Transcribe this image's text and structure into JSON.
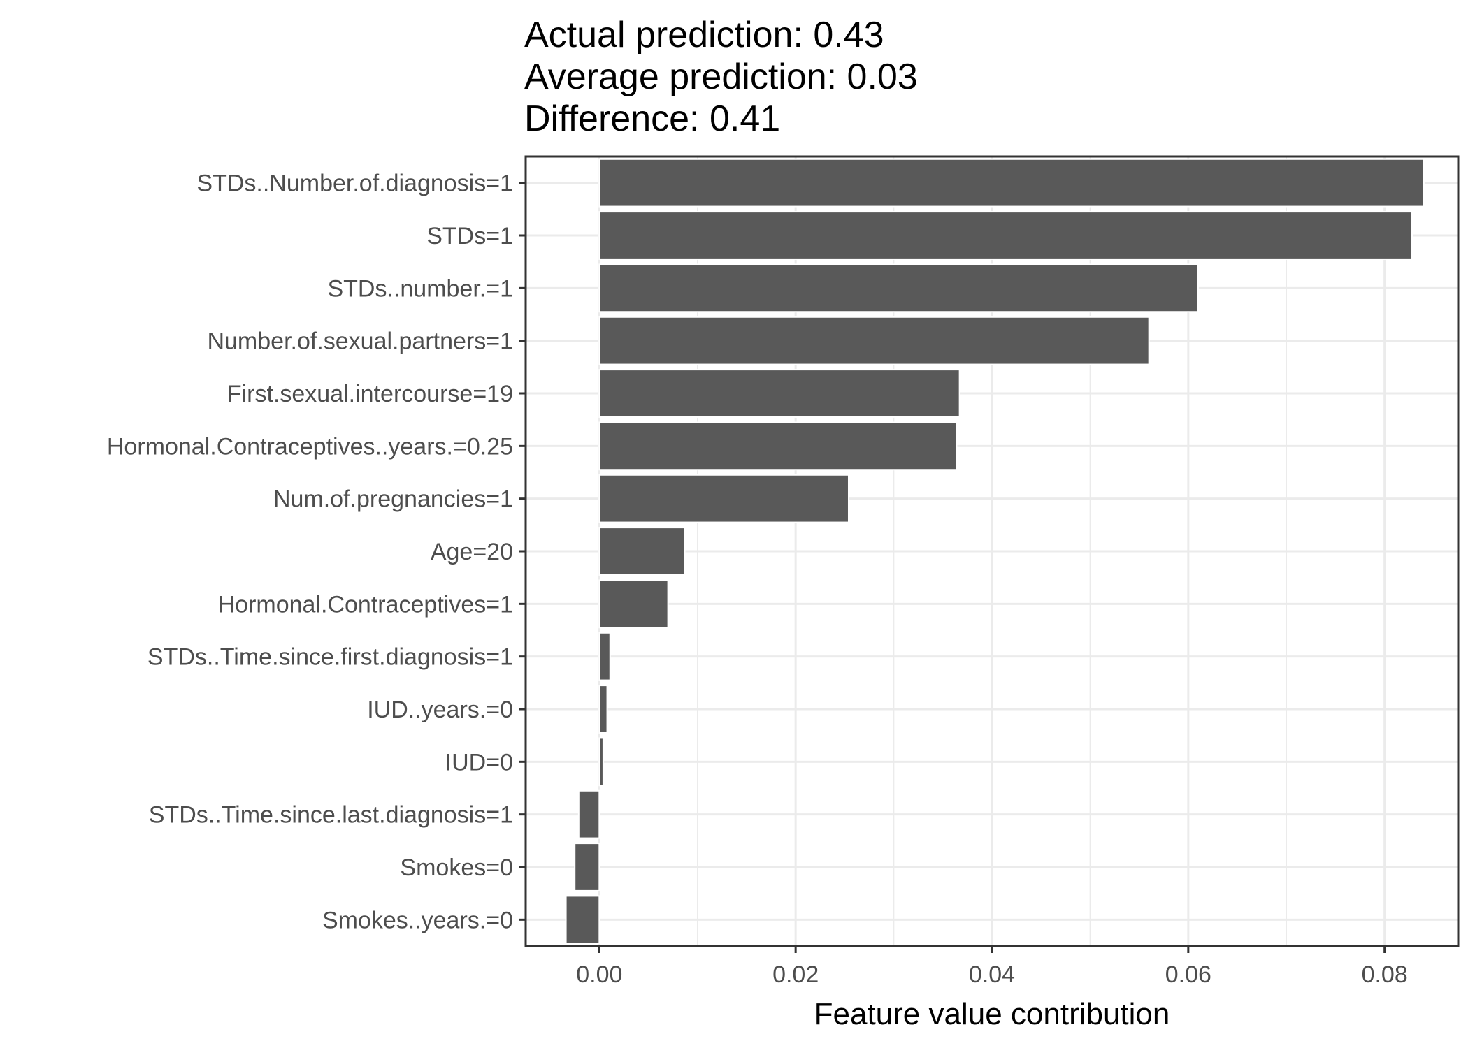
{
  "header": {
    "actual": "Actual prediction: 0.43",
    "average": "Average prediction: 0.03",
    "difference": "Difference: 0.41"
  },
  "chart_data": {
    "type": "bar",
    "orientation": "horizontal",
    "categories": [
      "STDs..Number.of.diagnosis=1",
      "STDs=1",
      "STDs..number.=1",
      "Number.of.sexual.partners=1",
      "First.sexual.intercourse=19",
      "Hormonal.Contraceptives..years.=0.25",
      "Num.of.pregnancies=1",
      "Age=20",
      "Hormonal.Contraceptives=1",
      "STDs..Time.since.first.diagnosis=1",
      "IUD..years.=0",
      "IUD=0",
      "STDs..Time.since.last.diagnosis=1",
      "Smokes=0",
      "Smokes..years.=0"
    ],
    "values": [
      0.084,
      0.0828,
      0.061,
      0.056,
      0.0367,
      0.0364,
      0.0254,
      0.0087,
      0.007,
      0.0011,
      0.0008,
      0.0004,
      -0.0021,
      -0.0025,
      -0.0034
    ],
    "xlabel": "Feature value contribution",
    "ylabel": "",
    "xlim": [
      -0.0075,
      0.0875
    ],
    "xticks": [
      "0.00",
      "0.02",
      "0.04",
      "0.06",
      "0.08"
    ],
    "xtick_values": [
      0,
      0.02,
      0.04,
      0.06,
      0.08
    ],
    "grid": true,
    "bar_color": "#595959",
    "grid_color": "#ebebeb",
    "panel_border_color": "#333333"
  }
}
